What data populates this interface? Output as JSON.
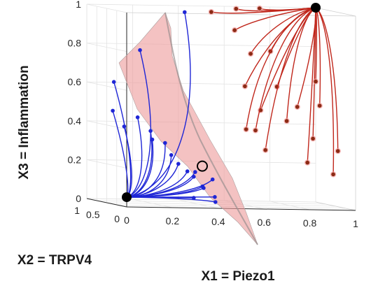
{
  "chart_data": {
    "type": "3d-line",
    "xlabel": "X1 = Piezo1",
    "ylabel": "X2 = TRPV4",
    "zlabel": "X3 = Inflammation",
    "xlim": [
      0,
      1
    ],
    "ylim": [
      0,
      1
    ],
    "zlim": [
      0,
      1
    ],
    "x_ticks": [
      "0",
      "0.2",
      "0.4",
      "0.6",
      "0.8",
      "1"
    ],
    "y_ticks": [
      "0",
      "0.5",
      "1"
    ],
    "z_ticks": [
      "0",
      "0.2",
      "0.4",
      "0.6",
      "0.8",
      "1"
    ],
    "grid": true,
    "colors": {
      "blue": "#1f26d6",
      "red": "#c0271c",
      "dark_red": "#8b2a14",
      "surface": "#ec9a9a"
    },
    "stable_points": [
      {
        "name": "low",
        "x": 0.0,
        "y": 0.0,
        "z": 0.05
      },
      {
        "name": "high",
        "x": 1.0,
        "y": 1.0,
        "z": 1.0
      }
    ],
    "saddle_point": {
      "x": 0.4,
      "y": 0.4,
      "z": 0.2
    },
    "series": [
      {
        "color": "blue",
        "target": "low",
        "starts": [
          [
            0.18,
            0.7,
            0.78
          ],
          [
            0.37,
            0.67,
            0.98
          ],
          [
            0.04,
            0.55,
            0.62
          ],
          [
            0.0,
            0.35,
            0.48
          ],
          [
            0.05,
            0.35,
            0.4
          ],
          [
            0.1,
            0.3,
            0.45
          ],
          [
            0.16,
            0.32,
            0.38
          ],
          [
            0.15,
            0.22,
            0.34
          ],
          [
            0.22,
            0.3,
            0.32
          ],
          [
            0.24,
            0.26,
            0.26
          ],
          [
            0.25,
            0.14,
            0.22
          ],
          [
            0.32,
            0.12,
            0.18
          ],
          [
            0.3,
            0.2,
            0.18
          ],
          [
            0.34,
            0.27,
            0.15
          ],
          [
            0.38,
            0.28,
            0.1
          ],
          [
            0.41,
            0.2,
            0.14
          ],
          [
            0.35,
            0.08,
            0.1
          ],
          [
            0.3,
            0.04,
            0.05
          ],
          [
            0.44,
            0.3,
            0.02
          ],
          [
            0.42,
            0.2,
            0.05
          ]
        ]
      },
      {
        "color": "red",
        "target": "high",
        "starts": [
          [
            0.5,
            0.75,
            0.98
          ],
          [
            0.6,
            0.7,
            1.0
          ],
          [
            0.72,
            0.8,
            1.0
          ],
          [
            0.55,
            0.45,
            0.9
          ],
          [
            0.62,
            0.45,
            0.78
          ],
          [
            0.68,
            0.3,
            0.8
          ],
          [
            0.56,
            0.25,
            0.62
          ],
          [
            0.7,
            0.25,
            0.62
          ],
          [
            0.78,
            0.2,
            0.52
          ],
          [
            0.62,
            0.2,
            0.5
          ],
          [
            0.72,
            0.12,
            0.45
          ],
          [
            0.56,
            0.22,
            0.4
          ],
          [
            0.84,
            0.15,
            0.36
          ],
          [
            0.94,
            0.1,
            0.3
          ],
          [
            1.0,
            1.0,
            0.62
          ],
          [
            1.0,
            0.9,
            0.5
          ],
          [
            0.92,
            0.1,
            0.18
          ],
          [
            0.8,
            0.06,
            0.24
          ],
          [
            0.58,
            0.1,
            0.4
          ],
          [
            0.62,
            0.08,
            0.3
          ]
        ]
      }
    ]
  }
}
